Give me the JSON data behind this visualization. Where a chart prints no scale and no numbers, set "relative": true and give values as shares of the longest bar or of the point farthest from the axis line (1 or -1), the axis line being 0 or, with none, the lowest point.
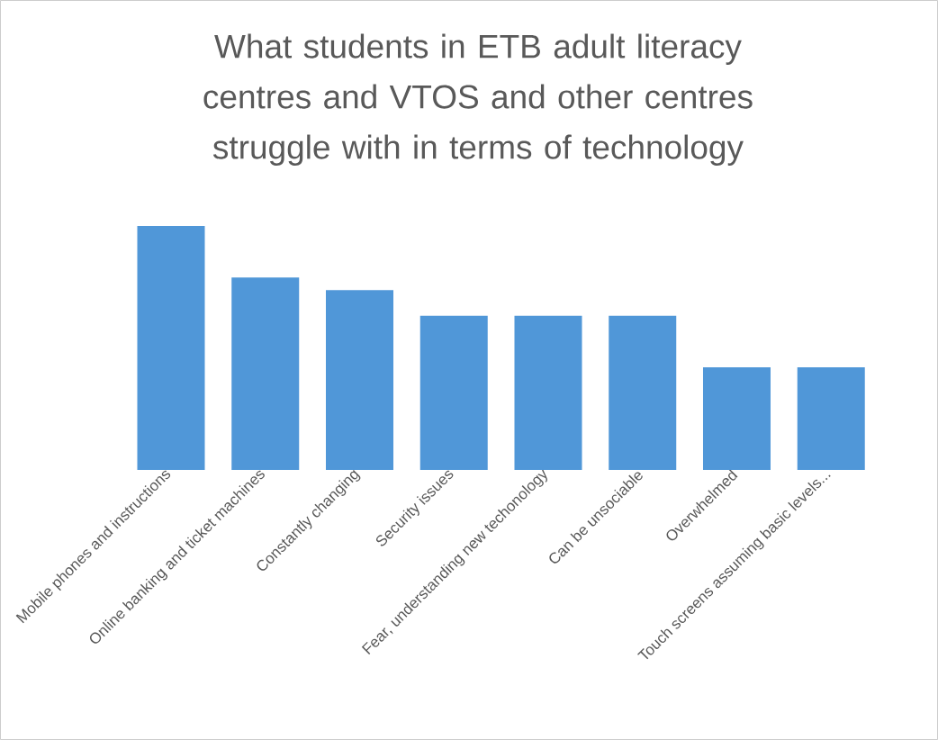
{
  "chart_data": {
    "type": "bar",
    "title": "What students in ETB adult literacy centres and VTOS and other centres struggle with in terms of technology",
    "categories": [
      "Mobile phones and instructions",
      "Online banking and ticket machines",
      "Constantly changing",
      "Security issues",
      "Fear, understanding new techonology",
      "Can be unsociable",
      "Overwhelmed",
      "Touch screens assuming basic levels..."
    ],
    "values": [
      1,
      0.789,
      0.737,
      0.632,
      0.632,
      0.632,
      0.421,
      0.421
    ],
    "color": "#5097d8",
    "relative": true
  }
}
